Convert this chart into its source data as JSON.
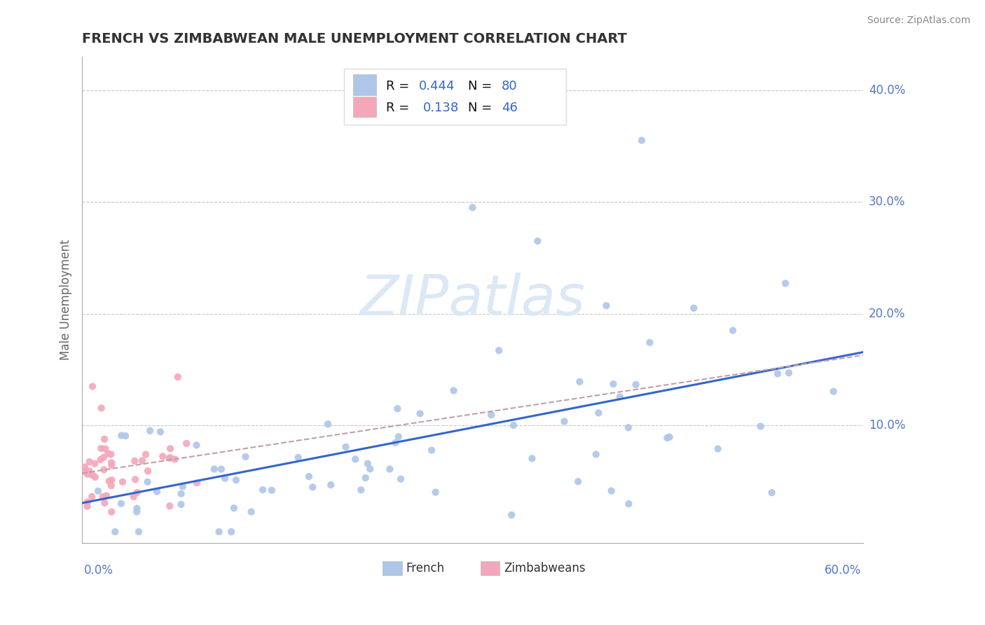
{
  "title": "FRENCH VS ZIMBABWEAN MALE UNEMPLOYMENT CORRELATION CHART",
  "source": "Source: ZipAtlas.com",
  "ylabel": "Male Unemployment",
  "xlim": [
    0.0,
    0.6
  ],
  "ylim": [
    -0.005,
    0.43
  ],
  "french_color": "#aec6e8",
  "zimbabwean_color": "#f4a7b9",
  "french_line_color": "#3366cc",
  "zimbabwean_line_color": "#c0a0aa",
  "background_color": "#ffffff",
  "grid_color": "#c8c8c8",
  "title_color": "#333333",
  "tick_label_color": "#5577cc",
  "watermark_color": "#dce8f5",
  "legend_text_color": "#111111",
  "legend_value_color": "#3366cc",
  "r1": "0.444",
  "n1": "80",
  "r2": "0.138",
  "n2": "46"
}
